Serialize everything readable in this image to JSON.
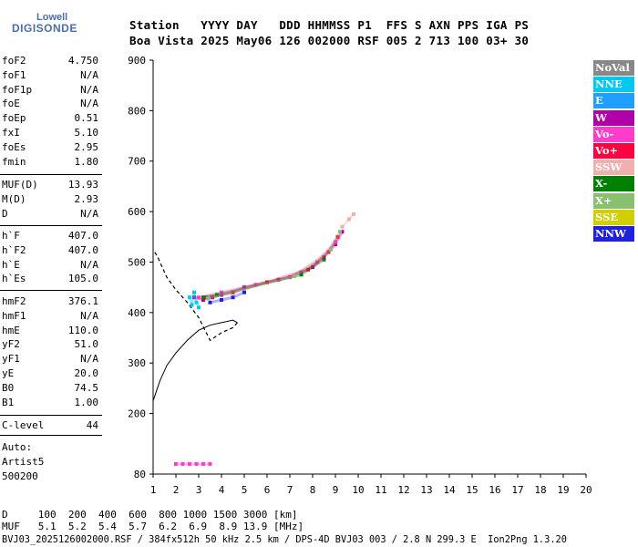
{
  "logo": {
    "line1": "Lowell",
    "line2": "DIGISONDE"
  },
  "header": {
    "line1": "Station   YYYY DAY   DDD HHMMSS P1  FFS S AXN PPS IGA PS",
    "line2": "Boa Vista 2025 May06 126 002000 RSF 005 2 713 100 03+ 30"
  },
  "params": {
    "group1": [
      {
        "name": "foF2",
        "value": "4.750"
      },
      {
        "name": "foF1",
        "value": "N/A"
      },
      {
        "name": "foF1p",
        "value": "N/A"
      },
      {
        "name": "foE",
        "value": "N/A"
      },
      {
        "name": "foEp",
        "value": "0.51"
      },
      {
        "name": "fxI",
        "value": "5.10"
      },
      {
        "name": "foEs",
        "value": "2.95"
      },
      {
        "name": "fmin",
        "value": "1.80"
      }
    ],
    "group2": [
      {
        "name": "MUF(D)",
        "value": "13.93"
      },
      {
        "name": "M(D)",
        "value": "2.93"
      },
      {
        "name": "D",
        "value": "N/A"
      }
    ],
    "group3": [
      {
        "name": "h`F",
        "value": "407.0"
      },
      {
        "name": "h`F2",
        "value": "407.0"
      },
      {
        "name": "h`E",
        "value": "N/A"
      },
      {
        "name": "h`Es",
        "value": "105.0"
      }
    ],
    "group4": [
      {
        "name": "hmF2",
        "value": "376.1"
      },
      {
        "name": "hmF1",
        "value": "N/A"
      },
      {
        "name": "hmE",
        "value": "110.0"
      },
      {
        "name": "yF2",
        "value": "51.0"
      },
      {
        "name": "yF1",
        "value": "N/A"
      },
      {
        "name": "yE",
        "value": "20.0"
      },
      {
        "name": "B0",
        "value": "74.5"
      },
      {
        "name": "B1",
        "value": "1.00"
      }
    ],
    "group5": [
      {
        "name": "C-level",
        "value": "44"
      }
    ]
  },
  "auto": {
    "line1": "Auto:",
    "line2": "Artist5",
    "line3": "500200"
  },
  "legend": [
    {
      "label": "NoVal",
      "color": "#888888"
    },
    {
      "label": "NNE",
      "color": "#00c8f0"
    },
    {
      "label": "E",
      "color": "#1fa0ff"
    },
    {
      "label": "W",
      "color": "#b000a8"
    },
    {
      "label": "Vo-",
      "color": "#ff3ccb"
    },
    {
      "label": "Vo+",
      "color": "#ff0040"
    },
    {
      "label": "SSW",
      "color": "#f0b0b0"
    },
    {
      "label": "X-",
      "color": "#008000"
    },
    {
      "label": "X+",
      "color": "#88c070"
    },
    {
      "label": "SSE",
      "color": "#d0d000"
    },
    {
      "label": "NNW",
      "color": "#2020e0"
    }
  ],
  "footer": {
    "line1": "D     100  200  400  600  800 1000 1500 3000 [km]",
    "line2": "MUF   5.1  5.2  5.4  5.7  6.2  6.9  8.9 13.9 [MHz]",
    "line3": "BVJ03_2025126002000.RSF / 384fx512h 50 kHz 2.5 km / DPS-4D BVJ03 003 / 2.8 N 299.3 E  Ion2Png 1.3.20"
  },
  "chart_data": {
    "type": "scatter",
    "title": "",
    "xlabel": "",
    "ylabel": "",
    "xlim": [
      1,
      20
    ],
    "ylim": [
      80,
      900
    ],
    "x_ticks": [
      1,
      2,
      3,
      4,
      5,
      6,
      7,
      8,
      9,
      10,
      11,
      12,
      13,
      14,
      15,
      16,
      17,
      18,
      19,
      20
    ],
    "y_ticks": [
      80,
      200,
      300,
      400,
      500,
      600,
      700,
      800,
      900
    ],
    "grid": false,
    "legend_position": "right",
    "series": [
      {
        "name": "W",
        "color": "#b000a8",
        "points": [
          [
            2.8,
            430
          ],
          [
            3.2,
            425
          ],
          [
            3.6,
            430
          ],
          [
            4.0,
            435
          ],
          [
            4.5,
            440
          ],
          [
            5.0,
            450
          ],
          [
            5.5,
            455
          ],
          [
            6.0,
            460
          ],
          [
            6.5,
            465
          ],
          [
            7.0,
            470
          ],
          [
            7.5,
            480
          ],
          [
            8.0,
            490
          ],
          [
            8.5,
            510
          ],
          [
            9.0,
            535
          ],
          [
            9.3,
            560
          ]
        ]
      },
      {
        "name": "Vo-",
        "color": "#ff3ccb",
        "points": [
          [
            3.0,
            430
          ],
          [
            4.0,
            440
          ],
          [
            5.5,
            455
          ],
          [
            7.0,
            470
          ],
          [
            8.2,
            500
          ],
          [
            9.0,
            540
          ]
        ]
      },
      {
        "name": "Vo+",
        "color": "#ff0040",
        "points": [
          [
            3.3,
            430
          ],
          [
            4.5,
            440
          ],
          [
            6.0,
            460
          ],
          [
            7.8,
            485
          ],
          [
            8.7,
            520
          ],
          [
            9.1,
            550
          ]
        ]
      },
      {
        "name": "NNE",
        "color": "#00c8f0",
        "points": [
          [
            2.6,
            430
          ],
          [
            2.7,
            415
          ],
          [
            2.8,
            440
          ],
          [
            2.9,
            420
          ],
          [
            3.0,
            410
          ]
        ]
      },
      {
        "name": "NNW",
        "color": "#2020e0",
        "points": [
          [
            3.5,
            420
          ],
          [
            4.0,
            425
          ],
          [
            4.5,
            430
          ],
          [
            5.0,
            440
          ]
        ]
      },
      {
        "name": "X-",
        "color": "#008000",
        "points": [
          [
            3.2,
            430
          ],
          [
            3.8,
            435
          ],
          [
            7.5,
            475
          ],
          [
            8.5,
            505
          ]
        ]
      },
      {
        "name": "X+",
        "color": "#88c070",
        "points": [
          [
            3.4,
            428
          ],
          [
            7.2,
            472
          ],
          [
            8.8,
            525
          ],
          [
            9.2,
            560
          ]
        ]
      },
      {
        "name": "SSW",
        "color": "#f0b0b0",
        "points": [
          [
            9.3,
            570
          ],
          [
            9.6,
            585
          ],
          [
            9.8,
            595
          ]
        ]
      },
      {
        "name": "Es-layer",
        "color": "#ff3ccb",
        "points": [
          [
            2.0,
            100
          ],
          [
            2.3,
            100
          ],
          [
            2.6,
            100
          ],
          [
            2.9,
            100
          ],
          [
            3.2,
            100
          ],
          [
            3.5,
            100
          ]
        ]
      }
    ],
    "profile": [
      [
        1.0,
        225
      ],
      [
        1.3,
        265
      ],
      [
        1.6,
        295
      ],
      [
        2.0,
        320
      ],
      [
        2.5,
        345
      ],
      [
        3.0,
        365
      ],
      [
        3.5,
        375
      ],
      [
        4.0,
        380
      ],
      [
        4.5,
        385
      ],
      [
        4.7,
        380
      ],
      [
        4.5,
        370
      ],
      [
        4.0,
        360
      ],
      [
        3.5,
        345
      ],
      [
        3.0,
        390
      ],
      [
        2.5,
        420
      ],
      [
        2.0,
        445
      ],
      [
        1.6,
        470
      ],
      [
        1.2,
        510
      ],
      [
        1.0,
        525
      ]
    ]
  }
}
